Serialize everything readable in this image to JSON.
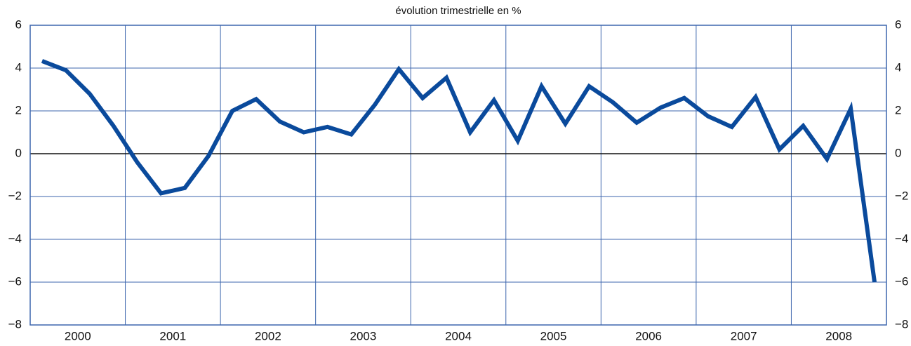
{
  "chart_data": {
    "type": "line",
    "title": "évolution trimestrielle en %",
    "x": [
      2000.125,
      2000.375,
      2000.625,
      2000.875,
      2001.125,
      2001.375,
      2001.625,
      2001.875,
      2002.125,
      2002.375,
      2002.625,
      2002.875,
      2003.125,
      2003.375,
      2003.625,
      2003.875,
      2004.125,
      2004.375,
      2004.625,
      2004.875,
      2005.125,
      2005.375,
      2005.625,
      2005.875,
      2006.125,
      2006.375,
      2006.625,
      2006.875,
      2007.125,
      2007.375,
      2007.625,
      2007.875,
      2008.125,
      2008.375,
      2008.625,
      2008.875
    ],
    "series": [
      {
        "color": "#0a4a9c",
        "values": [
          4.33,
          3.9,
          2.8,
          1.3,
          -0.4,
          -1.85,
          -1.6,
          -0.1,
          2.0,
          2.55,
          1.5,
          1.0,
          1.25,
          0.9,
          2.3,
          3.95,
          2.6,
          3.55,
          1.0,
          2.5,
          0.6,
          3.15,
          1.4,
          3.15,
          2.4,
          1.45,
          2.15,
          2.6,
          1.75,
          1.25,
          2.65,
          0.2,
          1.3,
          -0.25,
          2.1,
          -6.0
        ]
      }
    ],
    "xlim": [
      2000,
      2009
    ],
    "xticks": [
      {
        "value": 2000.5,
        "label": "2000"
      },
      {
        "value": 2001.5,
        "label": "2001"
      },
      {
        "value": 2002.5,
        "label": "2002"
      },
      {
        "value": 2003.5,
        "label": "2003"
      },
      {
        "value": 2004.5,
        "label": "2004"
      },
      {
        "value": 2005.5,
        "label": "2005"
      },
      {
        "value": 2006.5,
        "label": "2006"
      },
      {
        "value": 2007.5,
        "label": "2007"
      },
      {
        "value": 2008.5,
        "label": "2008"
      }
    ],
    "xgrid": [
      2001,
      2002,
      2003,
      2004,
      2005,
      2006,
      2007,
      2008
    ],
    "ylim": [
      -8,
      6
    ],
    "yticks": [
      {
        "value": -8,
        "label": "−8"
      },
      {
        "value": -6,
        "label": "−6"
      },
      {
        "value": -4,
        "label": "−4"
      },
      {
        "value": -2,
        "label": "−2"
      },
      0,
      2,
      4,
      6
    ],
    "grid": true,
    "grid_color": "#3d66ad"
  }
}
